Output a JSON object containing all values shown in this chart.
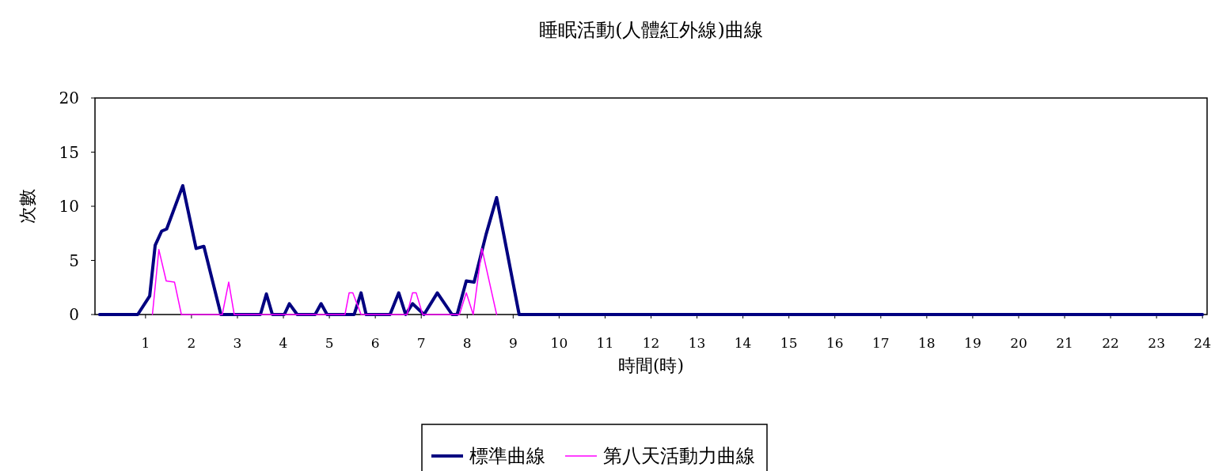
{
  "chart_data": {
    "type": "line",
    "title": "睡眠活動(人體紅外線)曲線",
    "xlabel": "時間(時)",
    "ylabel": "次數",
    "xlim": [
      -0.1,
      24.1
    ],
    "ylim": [
      0,
      20
    ],
    "xticks": [
      1,
      2,
      3,
      4,
      5,
      6,
      7,
      8,
      9,
      10,
      11,
      12,
      13,
      14,
      15,
      16,
      17,
      18,
      19,
      20,
      21,
      22,
      23,
      24
    ],
    "yticks": [
      0,
      5,
      10,
      15,
      20
    ],
    "legend": "bottom",
    "series": [
      {
        "name": "標準曲線",
        "color": "#000080",
        "x": [
          0,
          0.83,
          1.09,
          1.21,
          1.35,
          1.46,
          1.81,
          2.1,
          2.27,
          2.64,
          3.5,
          3.63,
          3.76,
          4.02,
          4.13,
          4.3,
          4.69,
          4.82,
          4.95,
          5.54,
          5.69,
          5.8,
          6.32,
          6.51,
          6.66,
          6.81,
          7.06,
          7.35,
          7.67,
          7.78,
          7.98,
          8.15,
          8.41,
          8.64,
          9.13,
          24
        ],
        "values": [
          0,
          0,
          1.7,
          6.4,
          7.7,
          7.9,
          11.9,
          6.1,
          6.3,
          0,
          0,
          1.9,
          0,
          0,
          1,
          0,
          0,
          1,
          0,
          0,
          2,
          0,
          0,
          2,
          0,
          1,
          0,
          2,
          0,
          0,
          3.1,
          3,
          7.4,
          10.8,
          0,
          0
        ]
      },
      {
        "name": "第八天活動力曲線",
        "color": "#ff00ff",
        "x": [
          1.15,
          1.29,
          1.45,
          1.63,
          1.78,
          2.67,
          2.81,
          2.93,
          5.34,
          5.43,
          5.51,
          5.69,
          6.69,
          6.81,
          6.89,
          7.03,
          7.83,
          7.98,
          8.13,
          8.32,
          8.64
        ],
        "values": [
          0,
          6,
          3.1,
          3,
          0,
          0,
          3,
          0,
          0,
          2,
          2,
          0,
          0,
          2,
          2,
          0,
          0,
          2,
          0,
          6.1,
          0
        ]
      }
    ]
  }
}
